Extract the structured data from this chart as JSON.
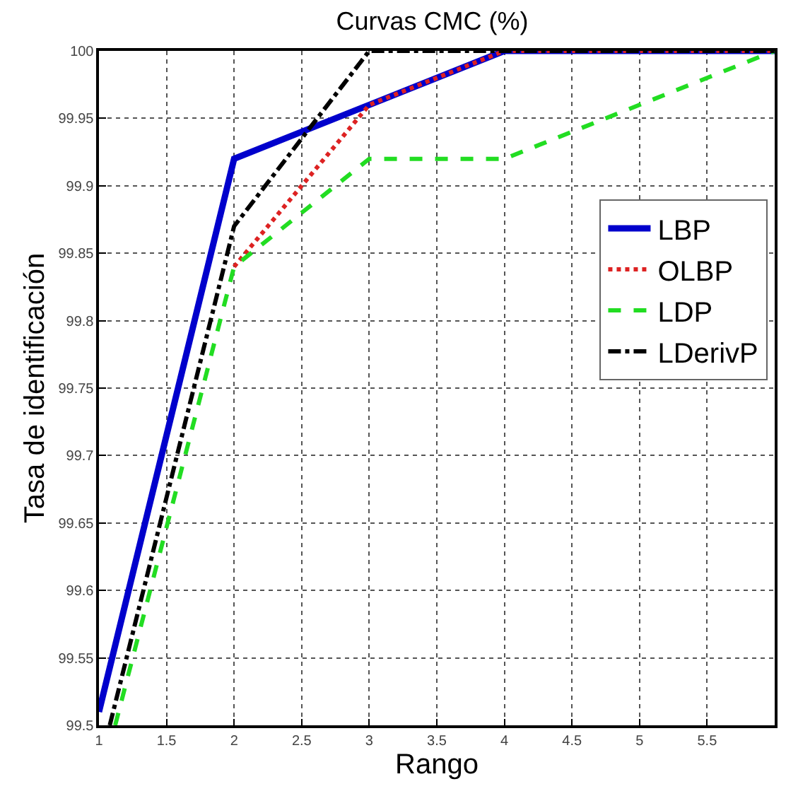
{
  "chart_data": {
    "type": "line",
    "title": "Curvas CMC (%)",
    "xlabel": "Rango",
    "ylabel": "Tasa de identificación",
    "xlim": [
      1,
      6
    ],
    "xticks": [
      1,
      1.5,
      2,
      2.5,
      3,
      3.5,
      4,
      4.5,
      5,
      5.5
    ],
    "ylim": [
      99.5,
      100
    ],
    "yticks": [
      99.5,
      99.55,
      99.6,
      99.65,
      99.7,
      99.75,
      99.8,
      99.85,
      99.9,
      99.95,
      100
    ],
    "grid": true,
    "legend": "right",
    "series": [
      {
        "name": "LBP",
        "color": "#0000cc",
        "line_style": "solid",
        "x": [
          1,
          2,
          3,
          4,
          5,
          6
        ],
        "values": [
          99.51,
          99.92,
          99.96,
          100,
          100,
          100
        ]
      },
      {
        "name": "OLBP",
        "color": "#dd2222",
        "line_style": "dotted",
        "x": [
          2,
          3,
          4,
          6
        ],
        "values": [
          99.84,
          99.96,
          100,
          100
        ]
      },
      {
        "name": "LDP",
        "color": "#22dd22",
        "line_style": "dashed",
        "x": [
          1.12,
          2,
          3,
          4,
          6
        ],
        "values": [
          99.5,
          99.84,
          99.92,
          99.92,
          100
        ]
      },
      {
        "name": "LDerivP",
        "color": "#000000",
        "line_style": "dashdot",
        "x": [
          1.08,
          2,
          3,
          4,
          6
        ],
        "values": [
          99.5,
          99.87,
          100,
          100,
          100
        ]
      }
    ]
  }
}
